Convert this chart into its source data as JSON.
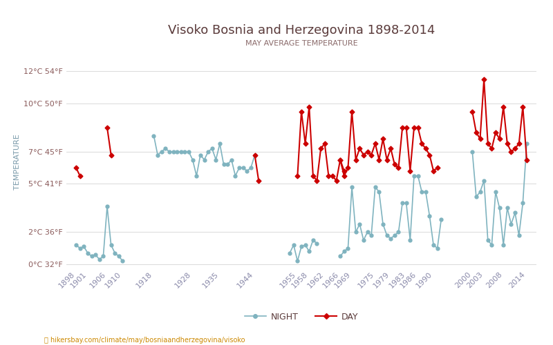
{
  "title": "Visoko Bosnia and Herzegovina 1898-2014",
  "subtitle": "MAY AVERAGE TEMPERATURE",
  "ylabel": "TEMPERATURE",
  "footer": "hikersbay.com/climate/may/bosniaandherzegovina/visoko",
  "legend_night": "NIGHT",
  "legend_day": "DAY",
  "yticks_labels": [
    "0°C 32°F",
    "2°C 36°F",
    "5°C 41°F",
    "7°C 45°F",
    "10°C 50°F",
    "12°C 54°F"
  ],
  "yticks_values": [
    0,
    2,
    5,
    7,
    10,
    12
  ],
  "ylim": [
    -0.3,
    13.0
  ],
  "xlim": [
    1895.5,
    2016.5
  ],
  "xtick_years": [
    1898,
    1901,
    1906,
    1910,
    1918,
    1928,
    1935,
    1944,
    1955,
    1958,
    1962,
    1966,
    1969,
    1975,
    1979,
    1983,
    1986,
    1990,
    2000,
    2003,
    2008,
    2014
  ],
  "night_segments": [
    {
      "years": [
        1898,
        1899,
        1900,
        1901,
        1902,
        1903,
        1904,
        1905,
        1906,
        1907,
        1908,
        1909,
        1910
      ],
      "values": [
        1.2,
        1.0,
        1.1,
        0.7,
        0.5,
        0.6,
        0.3,
        0.5,
        3.6,
        1.2,
        0.7,
        0.5,
        0.2
      ]
    },
    {
      "years": [
        1918,
        1919,
        1920,
        1921,
        1922,
        1923,
        1924,
        1925,
        1926,
        1927,
        1928,
        1929,
        1930,
        1931,
        1932,
        1933,
        1934,
        1935,
        1936,
        1937,
        1938,
        1939,
        1940,
        1941,
        1942,
        1943,
        1944
      ],
      "values": [
        8.0,
        6.8,
        7.0,
        7.2,
        7.0,
        7.0,
        7.0,
        7.0,
        7.0,
        7.0,
        6.5,
        5.5,
        6.8,
        6.5,
        7.0,
        7.2,
        6.5,
        7.5,
        6.2,
        6.2,
        6.5,
        5.5,
        6.0,
        6.0,
        5.8,
        6.0,
        6.8
      ]
    },
    {
      "years": [
        1953,
        1954,
        1955,
        1956,
        1957,
        1958,
        1959,
        1960
      ],
      "values": [
        0.7,
        1.2,
        0.2,
        1.1,
        1.2,
        0.8,
        1.5,
        1.3
      ]
    },
    {
      "years": [
        1966,
        1967,
        1968,
        1969,
        1970,
        1971,
        1972,
        1973,
        1974,
        1975,
        1976,
        1977,
        1978,
        1979,
        1980,
        1981,
        1982,
        1983,
        1984,
        1985,
        1986,
        1987,
        1988,
        1989,
        1990,
        1991,
        1992
      ],
      "values": [
        0.5,
        0.8,
        1.0,
        4.8,
        2.0,
        2.5,
        1.5,
        2.0,
        1.8,
        4.8,
        4.5,
        2.5,
        1.8,
        1.6,
        1.8,
        2.0,
        3.8,
        3.8,
        1.5,
        5.5,
        5.5,
        4.5,
        4.5,
        3.0,
        1.2,
        1.0,
        2.8
      ]
    },
    {
      "years": [
        2000,
        2001,
        2002,
        2003,
        2004,
        2005,
        2006,
        2007,
        2008,
        2009,
        2010,
        2011,
        2012,
        2013,
        2014
      ],
      "values": [
        7.0,
        4.2,
        4.5,
        5.2,
        1.5,
        1.2,
        4.5,
        3.5,
        1.2,
        3.5,
        2.5,
        3.2,
        1.8,
        3.8,
        7.5
      ]
    }
  ],
  "day_segments": [
    {
      "years": [
        1898,
        1899
      ],
      "values": [
        6.0,
        5.5
      ]
    },
    {
      "years": [
        1906,
        1907
      ],
      "values": [
        8.5,
        6.8
      ]
    },
    {
      "years": [
        1944,
        1945
      ],
      "values": [
        6.8,
        5.2
      ]
    },
    {
      "years": [
        1955,
        1956,
        1957,
        1958,
        1959,
        1960,
        1961,
        1962,
        1963,
        1964,
        1965,
        1966,
        1967,
        1968,
        1969,
        1970,
        1971,
        1972,
        1973,
        1974,
        1975,
        1976,
        1977,
        1978,
        1979,
        1980,
        1981,
        1982,
        1983,
        1984,
        1985,
        1986,
        1987,
        1988,
        1989,
        1990,
        1991
      ],
      "values": [
        5.5,
        9.5,
        7.5,
        9.8,
        5.5,
        5.2,
        7.2,
        7.5,
        5.5,
        5.5,
        5.2,
        6.5,
        5.5,
        6.0,
        9.5,
        6.5,
        7.2,
        6.8,
        7.0,
        6.8,
        7.5,
        6.5,
        7.8,
        6.5,
        7.2,
        6.2,
        6.0,
        8.5,
        8.5,
        5.8,
        8.5,
        8.5,
        7.5,
        7.2,
        6.8,
        5.8,
        6.0
      ]
    },
    {
      "years": [
        1966,
        1967
      ],
      "values": [
        6.5,
        5.8
      ]
    },
    {
      "years": [
        2000,
        2001,
        2002,
        2003,
        2004,
        2005,
        2006,
        2007,
        2008,
        2009,
        2010,
        2011,
        2012,
        2013,
        2014
      ],
      "values": [
        9.5,
        8.2,
        7.8,
        11.5,
        7.5,
        7.2,
        8.2,
        7.8,
        9.8,
        7.5,
        7.0,
        7.2,
        7.5,
        9.8,
        6.5
      ]
    }
  ],
  "night_color": "#7fb3bf",
  "day_color": "#cc0000",
  "title_color": "#5a3a3a",
  "subtitle_color": "#8a6a6a",
  "ylabel_color": "#7a9aaa",
  "ytick_color": "#8a5a5a",
  "xtick_color": "#8a8aaa",
  "background_color": "#ffffff",
  "grid_color": "#dddddd",
  "footer_color": "#cc8800"
}
